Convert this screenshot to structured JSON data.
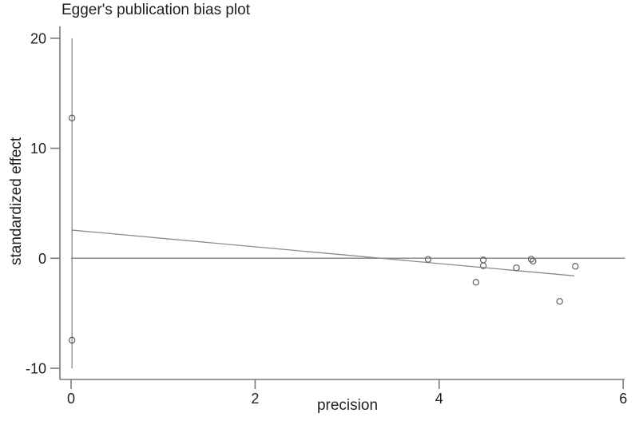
{
  "chart_data": {
    "type": "scatter",
    "title": "Egger's publication bias plot",
    "xlabel": "precision",
    "ylabel": "standardized effect",
    "xlim": [
      0,
      6
    ],
    "ylim": [
      -10,
      20
    ],
    "x_ticks": [
      "0",
      "2",
      "4",
      "6"
    ],
    "x_tick_values": [
      0,
      2,
      4,
      6
    ],
    "y_ticks": [
      "20",
      "10",
      "0",
      "-10"
    ],
    "y_tick_values": [
      20,
      10,
      0,
      -10
    ],
    "grid": false,
    "legend": "none",
    "points": [
      [
        0.01,
        12.75
      ],
      [
        0.01,
        -7.45
      ],
      [
        3.88,
        -0.1
      ],
      [
        4.48,
        -0.15
      ],
      [
        4.48,
        -0.68
      ],
      [
        4.4,
        -2.18
      ],
      [
        4.84,
        -0.87
      ],
      [
        5.0,
        -0.08
      ],
      [
        5.02,
        -0.26
      ],
      [
        5.31,
        -3.92
      ],
      [
        5.48,
        -0.73
      ]
    ],
    "regression_line": {
      "x1": 0.01,
      "y1": 2.56,
      "x2": 5.47,
      "y2": -1.6
    },
    "zero_line": {
      "y": 0,
      "x1": 0,
      "x2": 6.02
    },
    "vertical_line": {
      "x": 0.01,
      "y1": 20,
      "y2": -10
    },
    "colors": {
      "background": "#ffffff",
      "axis": "#7a7a7a",
      "line": "#8a8a8a",
      "point_stroke": "#5f5f5f",
      "text": "#1f1f1f"
    }
  }
}
